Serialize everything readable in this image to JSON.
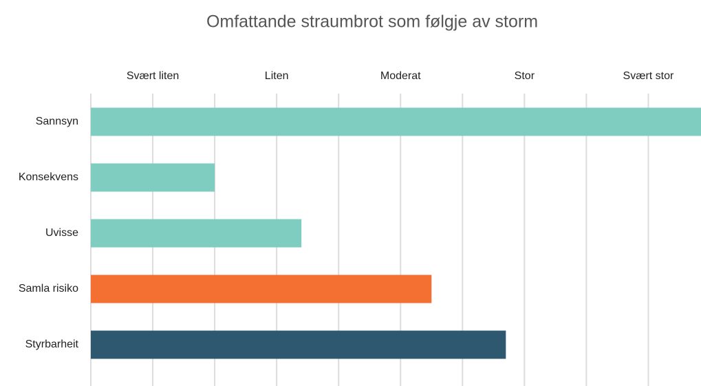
{
  "chart_data": {
    "type": "bar",
    "orientation": "horizontal",
    "title": "Omfattande straumbrot som følgje av storm",
    "categories": [
      "Sannsyn",
      "Konsekvens",
      "Uvisse",
      "Samla risiko",
      "Styrbarheit"
    ],
    "values": [
      9.85,
      2,
      3.4,
      5.5,
      6.7
    ],
    "colors": [
      "#7ecdc0",
      "#7ecdc0",
      "#7ecdc0",
      "#f36f32",
      "#2e5870"
    ],
    "xlim": [
      0,
      9.85
    ],
    "xticks": [
      {
        "value": 1,
        "label": "Svært liten"
      },
      {
        "value": 3,
        "label": "Liten"
      },
      {
        "value": 5,
        "label": "Moderat"
      },
      {
        "value": 7,
        "label": "Stor"
      },
      {
        "value": 9,
        "label": "Svært stor"
      }
    ],
    "grid_ticks": [
      0,
      1,
      2,
      3,
      4,
      5,
      6,
      7,
      8,
      9
    ],
    "grid": true
  }
}
